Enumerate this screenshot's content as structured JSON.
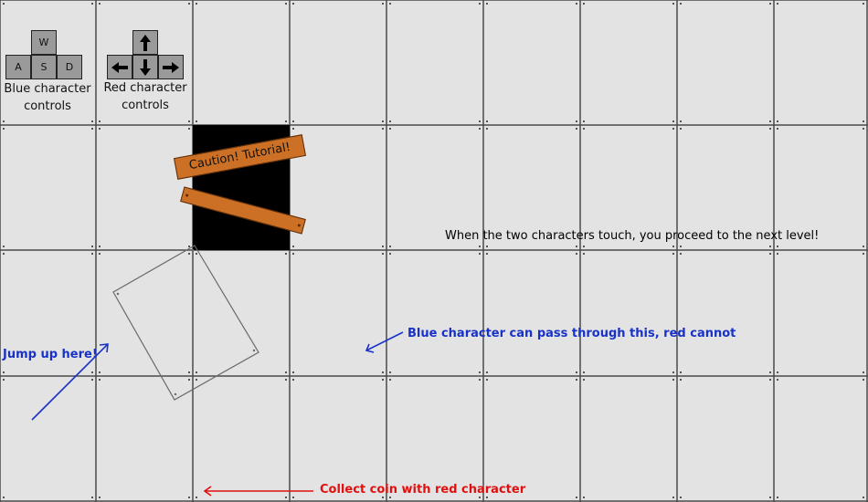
{
  "colors": {
    "background": "#e3e3e3",
    "grid_line": "#4a4a4a",
    "key_fill": "#9a9a9a",
    "wall": "#000000",
    "plank": "#cc7026",
    "blue_text": "#1832c8",
    "red_text": "#e01010"
  },
  "controls": {
    "blue": {
      "keys": {
        "up": "W",
        "left": "A",
        "down": "S",
        "right": "D"
      },
      "label_line1": "Blue character",
      "label_line2": "controls"
    },
    "red": {
      "keys": {
        "up": "arrow-up-icon",
        "left": "arrow-left-icon",
        "down": "arrow-down-icon",
        "right": "arrow-right-icon"
      },
      "label_line1": "Red character",
      "label_line2": "controls"
    }
  },
  "sign": {
    "text": "Caution! Tutorial!"
  },
  "hints": {
    "proceed": "When the two characters touch, you proceed to the next level!",
    "pass_through": "Blue character can pass through this, red cannot",
    "jump": "Jump up here!",
    "coin": "Collect coin with red character"
  }
}
